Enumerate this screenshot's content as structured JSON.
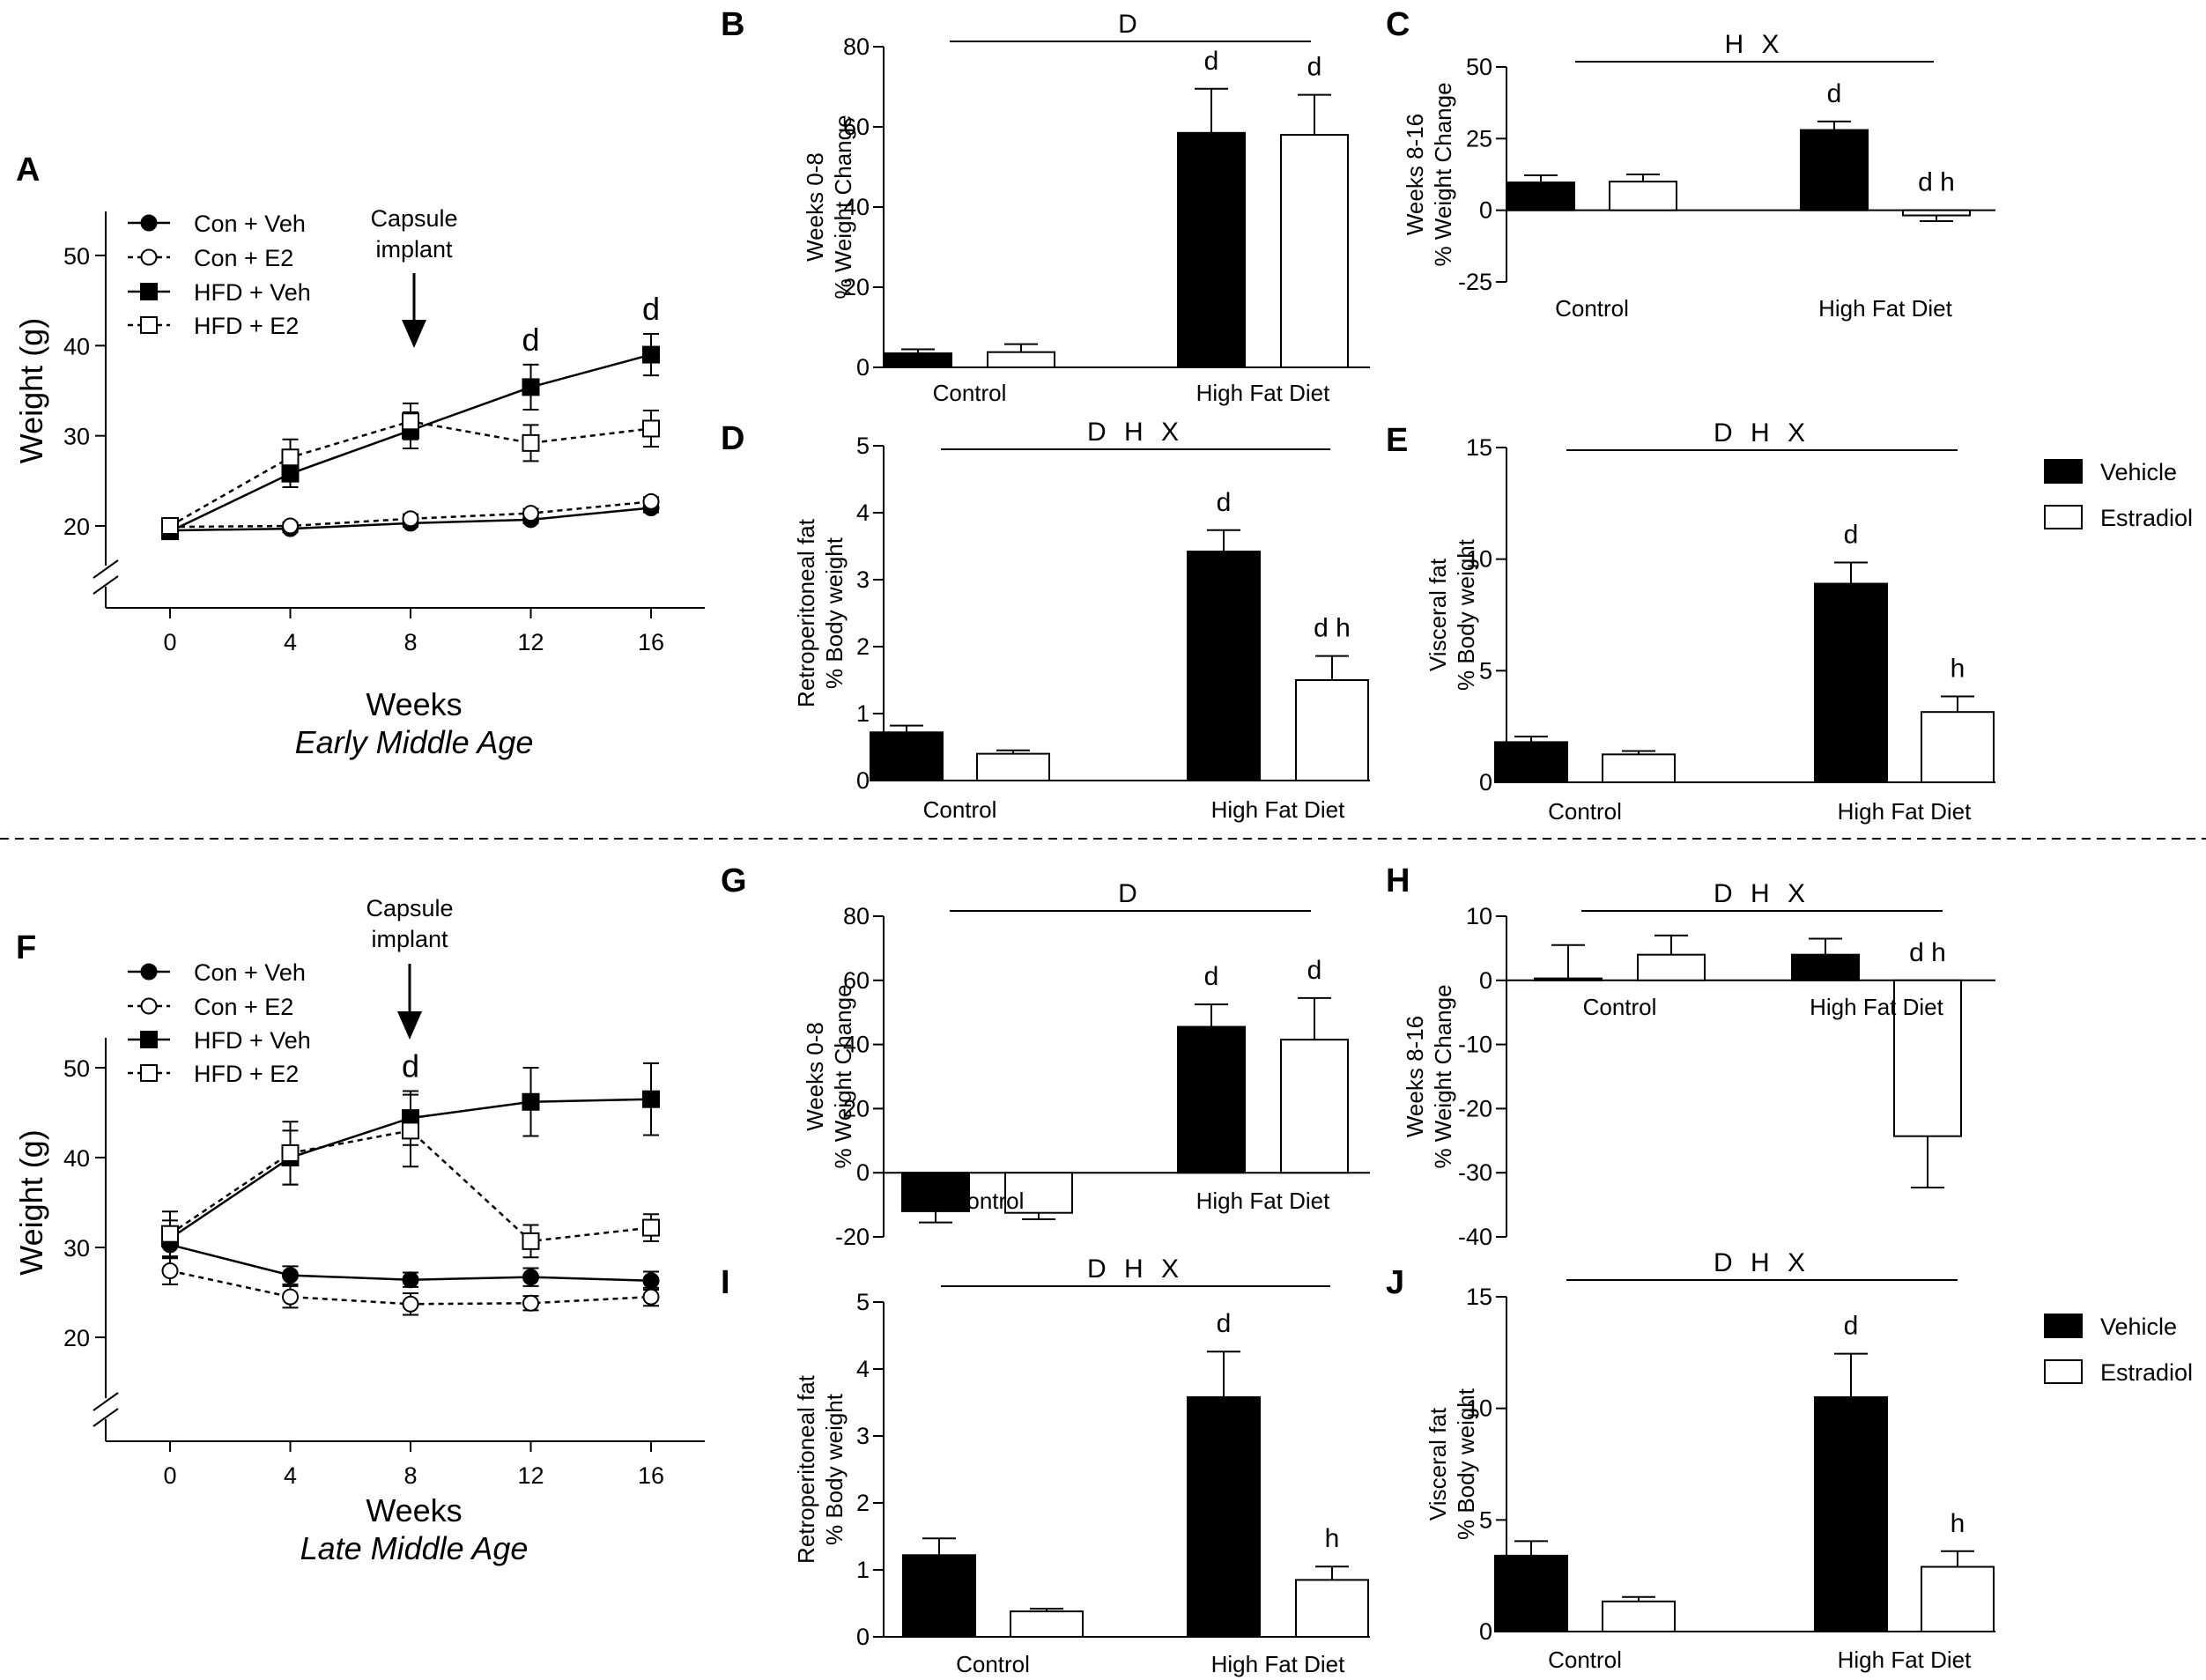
{
  "figure": {
    "legend_bars": {
      "vehicle": "Vehicle",
      "estradiol": "Estradiol"
    },
    "legend_lines": [
      "Con + Veh",
      "Con + E2",
      "HFD + Veh",
      "HFD + E2"
    ],
    "colors": {
      "vehicle": "#000000",
      "estradiol": "#ffffff",
      "axis": "#000000"
    }
  },
  "chart_data": [
    {
      "panel": "A",
      "type": "line",
      "x": [
        0,
        4,
        8,
        12,
        16
      ],
      "series": [
        {
          "name": "Con + Veh",
          "values": [
            19.5,
            19.7,
            20.3,
            20.7,
            22.0
          ],
          "err": [
            0.4,
            0.4,
            0.4,
            0.4,
            0.5
          ]
        },
        {
          "name": "Con + E2",
          "values": [
            19.9,
            20.0,
            20.8,
            21.4,
            22.7
          ],
          "err": [
            0.4,
            0.4,
            0.5,
            0.5,
            0.5
          ]
        },
        {
          "name": "HFD + Veh",
          "values": [
            19.4,
            25.8,
            30.6,
            35.4,
            39.0
          ],
          "err": [
            0.5,
            1.5,
            2.0,
            2.5,
            2.3
          ]
        },
        {
          "name": "HFD + E2",
          "values": [
            20.0,
            27.6,
            31.6,
            29.2,
            30.8
          ],
          "err": [
            0.5,
            2.0,
            2.0,
            2.0,
            2.0
          ]
        }
      ],
      "ylim": [
        15,
        55
      ],
      "yticks": [
        20,
        30,
        40,
        50
      ],
      "xlabel": "Weeks",
      "ylabel": "Weight (g)",
      "caption": "Early Middle Age",
      "annotation": "Capsule implant",
      "annotation_lines": [
        "Capsule",
        "implant"
      ],
      "sig": [
        {
          "x": 12,
          "label": "d"
        },
        {
          "x": 16,
          "label": "d"
        }
      ]
    },
    {
      "panel": "B",
      "type": "bar",
      "categories": [
        "Control",
        "High Fat Diet"
      ],
      "series": [
        {
          "name": "Vehicle",
          "values": [
            3.5,
            58.5
          ],
          "err": [
            1.0,
            11.0
          ]
        },
        {
          "name": "Estradiol",
          "values": [
            3.8,
            58.0
          ],
          "err": [
            2.0,
            10.0
          ]
        }
      ],
      "ylim": [
        0,
        80
      ],
      "yticks": [
        0,
        20,
        40,
        60,
        80
      ],
      "ylabel": [
        "Weeks 0-8",
        "% Weight Change"
      ],
      "header": "D",
      "sig": [
        {
          "cat": 1,
          "series": 0,
          "label": "d"
        },
        {
          "cat": 1,
          "series": 1,
          "label": "d"
        }
      ]
    },
    {
      "panel": "C",
      "type": "bar",
      "categories": [
        "Control",
        "High Fat Diet"
      ],
      "series": [
        {
          "name": "Vehicle",
          "values": [
            9.7,
            28.0
          ],
          "err": [
            2.5,
            3.0
          ]
        },
        {
          "name": "Estradiol",
          "values": [
            10.0,
            -1.8
          ],
          "err": [
            2.5,
            2.0
          ]
        }
      ],
      "ylim": [
        -25,
        50
      ],
      "yticks": [
        -25,
        0,
        25,
        50
      ],
      "ylabel": [
        "Weeks 8-16",
        "% Weight Change"
      ],
      "header": "H X",
      "sig": [
        {
          "cat": 1,
          "series": 0,
          "label": "d"
        },
        {
          "cat": 1,
          "series": 1,
          "label": "d h"
        }
      ]
    },
    {
      "panel": "D",
      "type": "bar",
      "categories": [
        "Control",
        "High Fat Diet"
      ],
      "series": [
        {
          "name": "Vehicle",
          "values": [
            0.72,
            3.42
          ],
          "err": [
            0.1,
            0.32
          ]
        },
        {
          "name": "Estradiol",
          "values": [
            0.4,
            1.5
          ],
          "err": [
            0.05,
            0.36
          ]
        }
      ],
      "ylim": [
        0,
        5
      ],
      "yticks": [
        0,
        1,
        2,
        3,
        4,
        5
      ],
      "ylabel": [
        "Retroperitoneal fat",
        "% Body weight"
      ],
      "header": "D H X",
      "sig": [
        {
          "cat": 1,
          "series": 0,
          "label": "d"
        },
        {
          "cat": 1,
          "series": 1,
          "label": "d h"
        }
      ]
    },
    {
      "panel": "E",
      "type": "bar",
      "categories": [
        "Control",
        "High Fat Diet"
      ],
      "series": [
        {
          "name": "Vehicle",
          "values": [
            1.8,
            8.9
          ],
          "err": [
            0.25,
            0.95
          ]
        },
        {
          "name": "Estradiol",
          "values": [
            1.25,
            3.15
          ],
          "err": [
            0.15,
            0.7
          ]
        }
      ],
      "ylim": [
        0,
        15
      ],
      "yticks": [
        0,
        5,
        10,
        15
      ],
      "ylabel": [
        "Visceral fat",
        "% Body weight"
      ],
      "header": "D H X",
      "sig": [
        {
          "cat": 1,
          "series": 0,
          "label": "d"
        },
        {
          "cat": 1,
          "series": 1,
          "label": "h"
        }
      ]
    },
    {
      "panel": "F",
      "type": "line",
      "x": [
        0,
        4,
        8,
        12,
        16
      ],
      "series": [
        {
          "name": "Con + Veh",
          "values": [
            30.3,
            26.9,
            26.4,
            26.7,
            26.3
          ],
          "err": [
            1.5,
            1.0,
            0.8,
            1.0,
            1.0
          ]
        },
        {
          "name": "Con + E2",
          "values": [
            27.4,
            24.5,
            23.7,
            23.8,
            24.5
          ],
          "err": [
            1.5,
            1.2,
            1.2,
            0.8,
            1.0
          ]
        },
        {
          "name": "HFD + Veh",
          "values": [
            31.0,
            40.0,
            44.4,
            46.2,
            46.5
          ],
          "err": [
            2.0,
            3.0,
            3.0,
            3.8,
            4.0
          ]
        },
        {
          "name": "HFD + E2",
          "values": [
            31.5,
            40.5,
            43.0,
            30.7,
            32.2
          ],
          "err": [
            2.5,
            3.5,
            4.0,
            1.8,
            1.5
          ]
        }
      ],
      "ylim": [
        15,
        55
      ],
      "yticks": [
        20,
        30,
        40,
        50
      ],
      "xlabel": "Weeks",
      "ylabel": "Weight (g)",
      "caption": "Late Middle Age",
      "annotation": "Capsule implant",
      "annotation_lines": [
        "Capsule",
        "implant"
      ],
      "sig": [
        {
          "x": 8,
          "label": "d"
        }
      ]
    },
    {
      "panel": "G",
      "type": "bar",
      "categories": [
        "Control",
        "High Fat Diet"
      ],
      "series": [
        {
          "name": "Vehicle",
          "values": [
            -12.0,
            45.5
          ],
          "err": [
            3.5,
            7.0
          ]
        },
        {
          "name": "Estradiol",
          "values": [
            -12.5,
            41.5
          ],
          "err": [
            2.0,
            13.0
          ]
        }
      ],
      "ylim": [
        -20,
        80
      ],
      "yticks": [
        -20,
        0,
        20,
        40,
        60,
        80
      ],
      "ylabel": [
        "Weeks 0-8",
        "% Weight Change"
      ],
      "header": "D",
      "sig": [
        {
          "cat": 1,
          "series": 0,
          "label": "d"
        },
        {
          "cat": 1,
          "series": 1,
          "label": "d"
        }
      ]
    },
    {
      "panel": "H",
      "type": "bar",
      "categories": [
        "Control",
        "High Fat Diet"
      ],
      "series": [
        {
          "name": "Vehicle",
          "values": [
            0.3,
            4.0
          ],
          "err": [
            5.2,
            2.5
          ]
        },
        {
          "name": "Estradiol",
          "values": [
            4.0,
            -24.3
          ],
          "err": [
            3.0,
            8.0
          ]
        }
      ],
      "ylim": [
        -40,
        10
      ],
      "yticks": [
        -40,
        -30,
        -20,
        -10,
        0,
        10
      ],
      "ylabel": [
        "Weeks 8-16",
        "% Weight Change"
      ],
      "header": "D H X",
      "sig": [
        {
          "cat": 1,
          "series": 1,
          "label": "d h"
        }
      ]
    },
    {
      "panel": "I",
      "type": "bar",
      "categories": [
        "Control",
        "High Fat Diet"
      ],
      "series": [
        {
          "name": "Vehicle",
          "values": [
            1.22,
            3.58
          ],
          "err": [
            0.25,
            0.68
          ]
        },
        {
          "name": "Estradiol",
          "values": [
            0.38,
            0.85
          ],
          "err": [
            0.04,
            0.2
          ]
        }
      ],
      "ylim": [
        0,
        5
      ],
      "yticks": [
        0,
        1,
        2,
        3,
        4,
        5
      ],
      "ylabel": [
        "Retroperitoneal fat",
        "% Body weight"
      ],
      "header": "D H X",
      "sig": [
        {
          "cat": 1,
          "series": 0,
          "label": "d"
        },
        {
          "cat": 1,
          "series": 1,
          "label": "h"
        }
      ]
    },
    {
      "panel": "J",
      "type": "bar",
      "categories": [
        "Control",
        "High Fat Diet"
      ],
      "series": [
        {
          "name": "Vehicle",
          "values": [
            3.4,
            10.5
          ],
          "err": [
            0.65,
            1.95
          ]
        },
        {
          "name": "Estradiol",
          "values": [
            1.35,
            2.9
          ],
          "err": [
            0.2,
            0.7
          ]
        }
      ],
      "ylim": [
        0,
        15
      ],
      "yticks": [
        0,
        5,
        10,
        15
      ],
      "ylabel": [
        "Visceral fat",
        "% Body weight"
      ],
      "header": "D H X",
      "sig": [
        {
          "cat": 1,
          "series": 0,
          "label": "d"
        },
        {
          "cat": 1,
          "series": 1,
          "label": "h"
        }
      ]
    }
  ]
}
